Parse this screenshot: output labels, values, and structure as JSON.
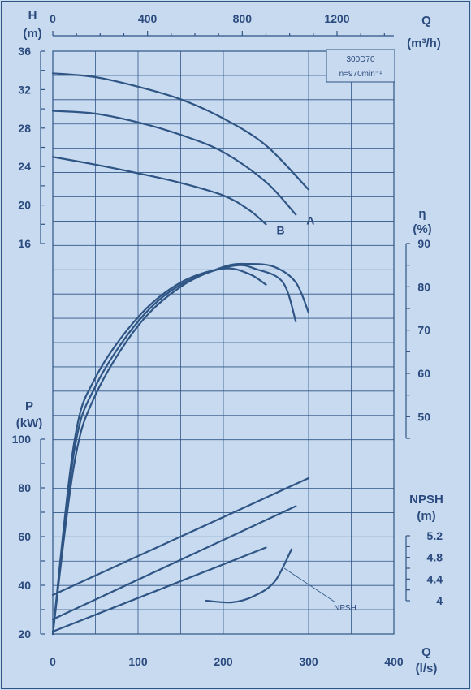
{
  "colors": {
    "background": "#c7daf0",
    "ink": "#2f5585",
    "text": "#2b4a7d"
  },
  "labels": {
    "h_axis": [
      "H",
      "(m)"
    ],
    "q_top": "Q",
    "q_top_unit": "(m³/h)",
    "eta_axis": [
      "η",
      "(%)"
    ],
    "p_axis": [
      "P",
      "(kW)"
    ],
    "npsh_axis": [
      "NPSH",
      "(m)"
    ],
    "q_bottom": [
      "Q",
      "(l/s)"
    ],
    "model_line1": "300D70",
    "model_line2": "n=970min⁻¹",
    "npsh_callout": "NPSH"
  },
  "chart_data": {
    "type": "line",
    "title": "300D70",
    "subtitle": "n=970min⁻¹",
    "x_axis_bottom": {
      "label": "Q (l/s)",
      "range": [
        0,
        400
      ],
      "ticks": [
        0,
        100,
        200,
        300,
        400
      ]
    },
    "x_axis_top": {
      "label": "Q (m³/h)",
      "range": [
        0,
        1440
      ],
      "ticks": [
        0,
        400,
        800,
        1200
      ]
    },
    "head_axis": {
      "label": "H (m)",
      "range": [
        16,
        36
      ],
      "ticks": [
        16,
        20,
        24,
        28,
        32,
        36
      ]
    },
    "efficiency_axis": {
      "label": "η (%)",
      "range": [
        45,
        90
      ],
      "ticks": [
        50,
        60,
        70,
        80,
        90
      ]
    },
    "power_axis": {
      "label": "P (kW)",
      "range": [
        20,
        100
      ],
      "ticks": [
        20,
        40,
        60,
        80,
        100
      ]
    },
    "npsh_axis": {
      "label": "NPSH (m)",
      "range": [
        4,
        5.2
      ],
      "ticks": [
        4,
        4.4,
        4.8,
        5.2
      ]
    },
    "grid": true,
    "head_curves": [
      {
        "name": "",
        "points": [
          [
            0,
            33.7
          ],
          [
            50,
            33.3
          ],
          [
            100,
            32.3
          ],
          [
            150,
            31.0
          ],
          [
            200,
            29.0
          ],
          [
            250,
            26.2
          ],
          [
            300,
            21.6
          ]
        ]
      },
      {
        "name": "A",
        "points": [
          [
            0,
            29.8
          ],
          [
            50,
            29.5
          ],
          [
            100,
            28.6
          ],
          [
            150,
            27.3
          ],
          [
            200,
            25.5
          ],
          [
            250,
            22.4
          ],
          [
            285,
            19.0
          ]
        ]
      },
      {
        "name": "B",
        "points": [
          [
            0,
            25.0
          ],
          [
            50,
            24.2
          ],
          [
            100,
            23.3
          ],
          [
            150,
            22.3
          ],
          [
            200,
            21.0
          ],
          [
            230,
            19.5
          ],
          [
            250,
            18.0
          ]
        ]
      }
    ],
    "efficiency_curves": [
      {
        "name": "",
        "points": [
          [
            0,
            0
          ],
          [
            25,
            39
          ],
          [
            50,
            55
          ],
          [
            100,
            71
          ],
          [
            150,
            80
          ],
          [
            200,
            84.6
          ],
          [
            230,
            85.3
          ],
          [
            260,
            84.6
          ],
          [
            285,
            81
          ],
          [
            300,
            74
          ]
        ]
      },
      {
        "name": "",
        "points": [
          [
            0,
            0
          ],
          [
            25,
            42
          ],
          [
            50,
            57
          ],
          [
            100,
            72
          ],
          [
            150,
            80.5
          ],
          [
            210,
            84.8
          ],
          [
            240,
            84
          ],
          [
            270,
            81
          ],
          [
            285,
            72
          ]
        ]
      },
      {
        "name": "",
        "points": [
          [
            0,
            0
          ],
          [
            25,
            44
          ],
          [
            50,
            59
          ],
          [
            100,
            73
          ],
          [
            150,
            81
          ],
          [
            200,
            84.2
          ],
          [
            230,
            83
          ],
          [
            250,
            80.5
          ]
        ]
      }
    ],
    "power_curves": [
      {
        "name": "",
        "points": [
          [
            0,
            36
          ],
          [
            300,
            84
          ]
        ]
      },
      {
        "name": "",
        "points": [
          [
            0,
            26
          ],
          [
            285,
            72.5
          ]
        ]
      },
      {
        "name": "",
        "points": [
          [
            0,
            21
          ],
          [
            250,
            55.5
          ]
        ]
      }
    ],
    "npsh_curve": {
      "name": "NPSH",
      "points": [
        [
          180,
          4.0
        ],
        [
          210,
          3.97
        ],
        [
          235,
          4.08
        ],
        [
          260,
          4.35
        ],
        [
          280,
          4.95
        ]
      ]
    }
  }
}
